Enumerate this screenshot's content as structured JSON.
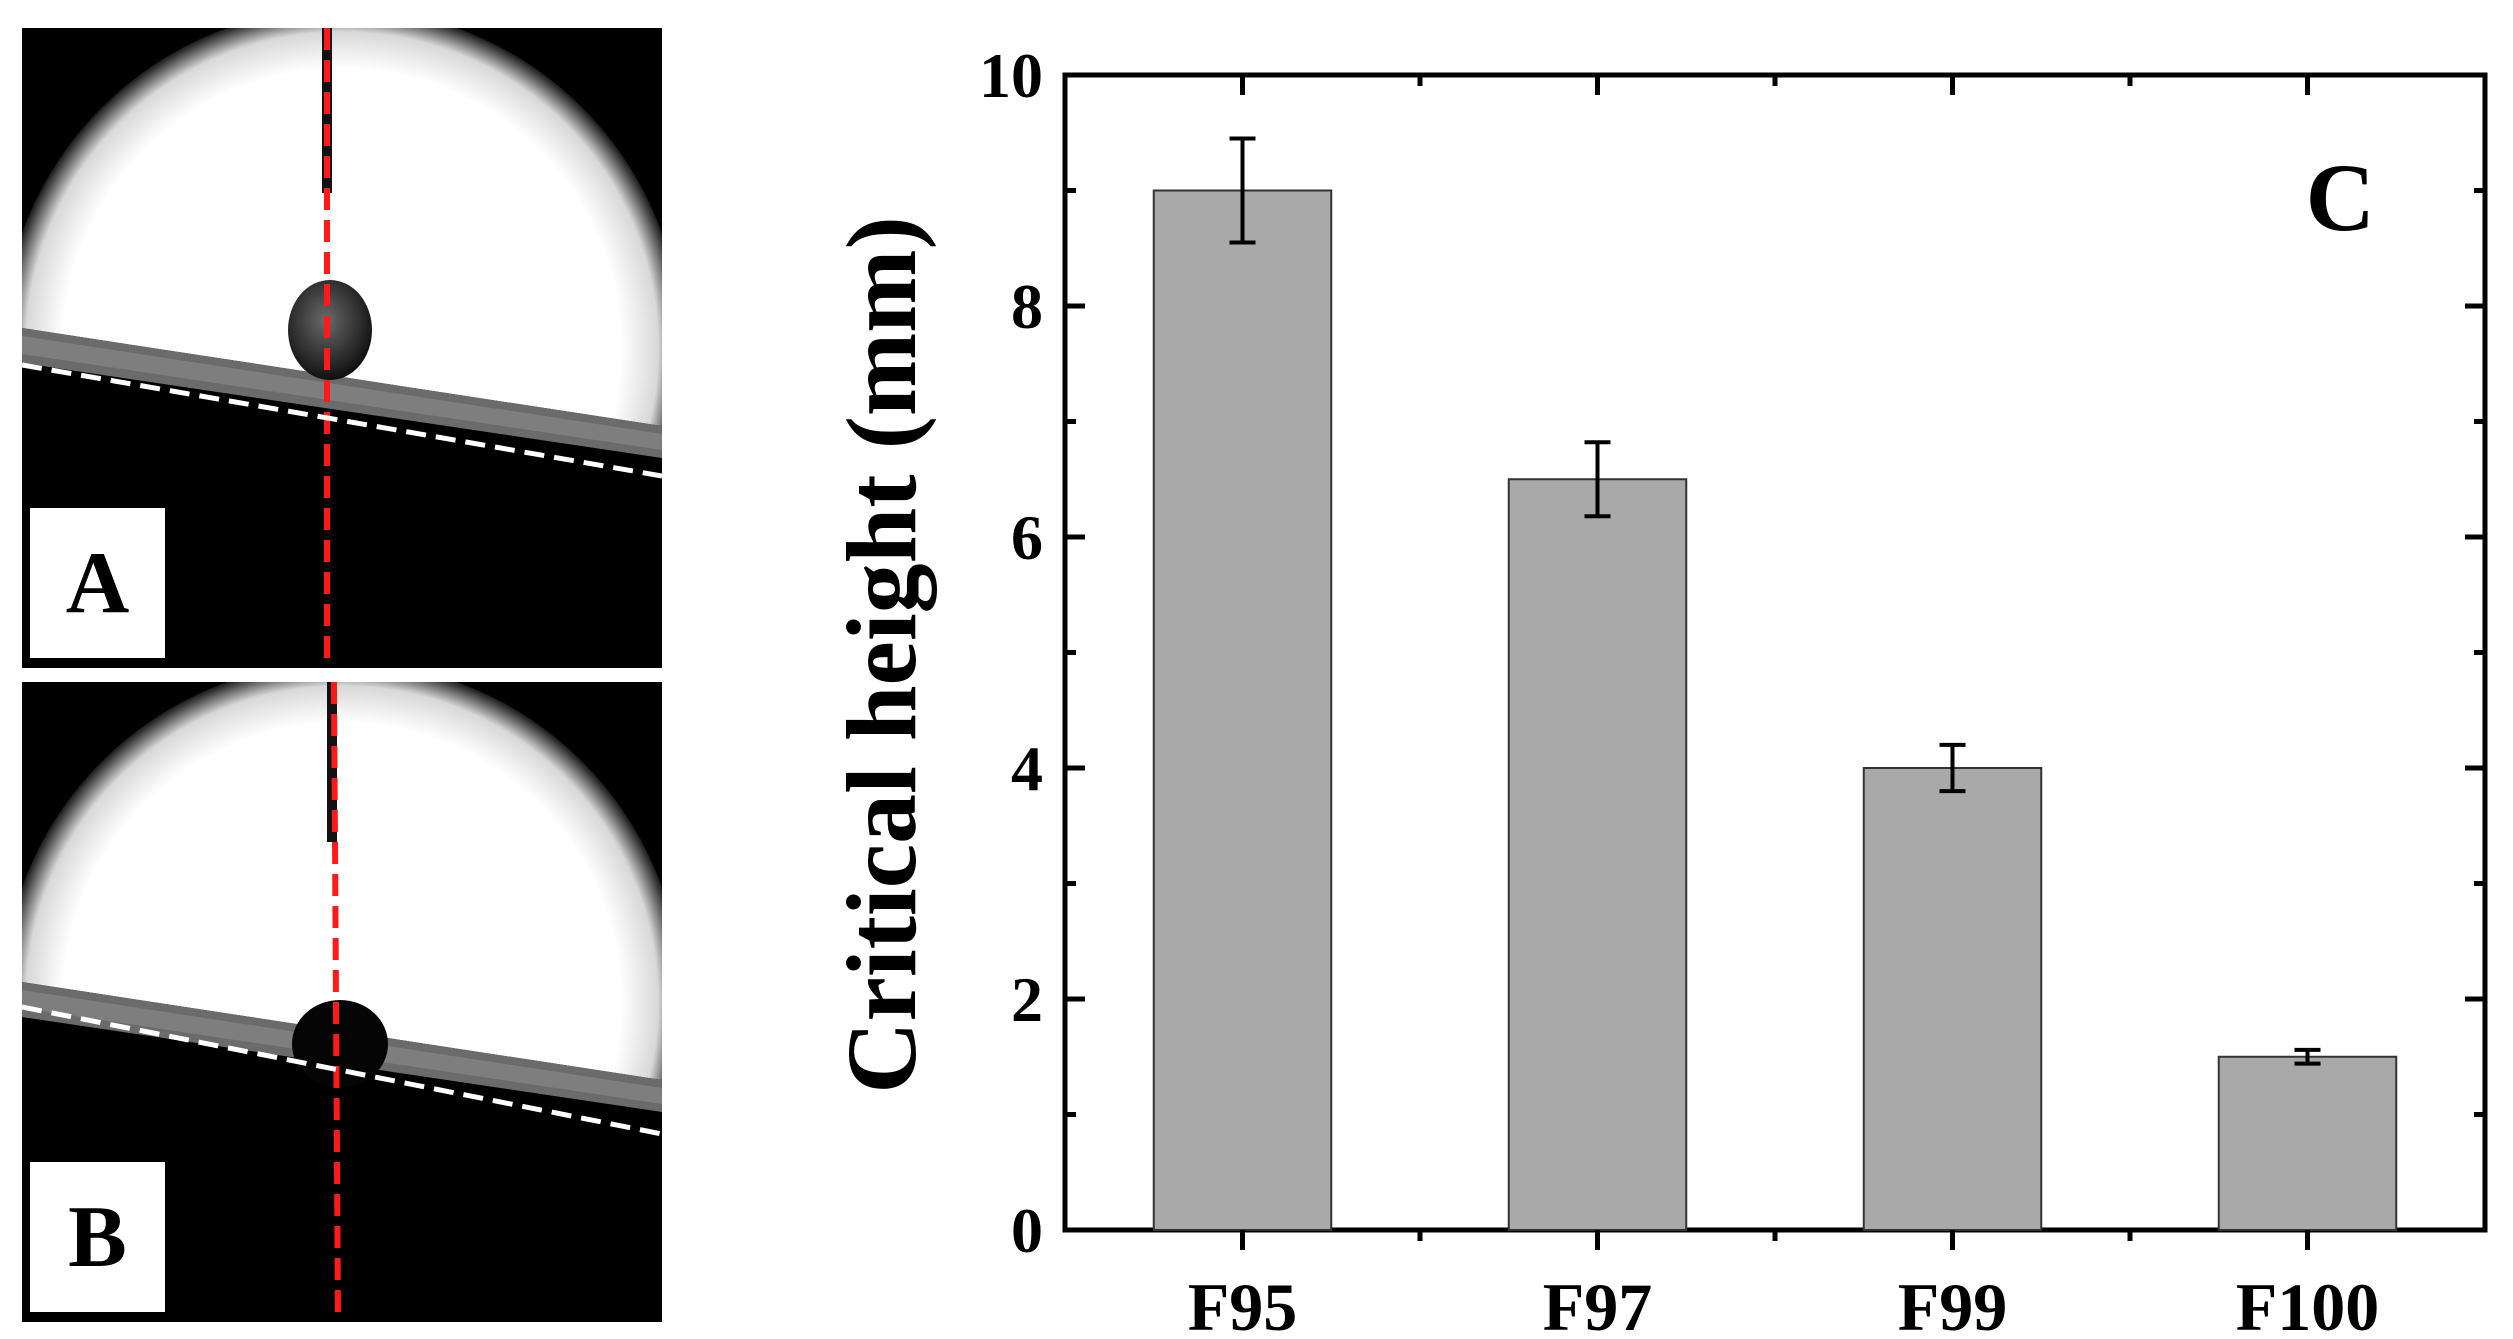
{
  "panels": {
    "a_label": "A",
    "b_label": "B"
  },
  "chart_data": {
    "type": "bar",
    "panel_label": "C",
    "categories": [
      "F95",
      "F97",
      "F99",
      "F100"
    ],
    "values": [
      9.0,
      6.5,
      4.0,
      1.5
    ],
    "errors": [
      0.45,
      0.32,
      0.2,
      0.06
    ],
    "title": "",
    "xlabel": "",
    "ylabel": "Critical height (mm)",
    "ylim": [
      0,
      10
    ],
    "yticks": [
      0,
      2,
      4,
      6,
      8,
      10
    ],
    "bar_color": "#a9a9a9",
    "grid": false
  }
}
